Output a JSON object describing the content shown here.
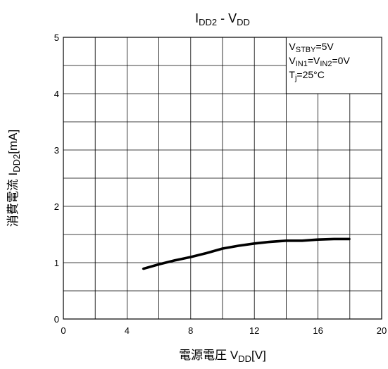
{
  "chart_data": {
    "type": "line",
    "title": {
      "main": "I",
      "main_sub": "DD2",
      "sep": " - V",
      "sep_sub": "DD"
    },
    "xlabel": {
      "prefix": "電源電圧 V",
      "sub": "DD",
      "suffix": "[V]"
    },
    "ylabel": {
      "prefix": "消費電流 I",
      "sub": "DD2",
      "suffix": "[mA]"
    },
    "xlim": [
      0,
      20
    ],
    "ylim": [
      0,
      5
    ],
    "x_major_ticks": [
      "0",
      "4",
      "8",
      "12",
      "16",
      "20"
    ],
    "y_major_ticks": [
      "0",
      "1",
      "2",
      "3",
      "4",
      "5"
    ],
    "x_grid_step": 2,
    "y_grid_step": 0.5,
    "grid": true,
    "legend": "none",
    "annotation": {
      "lines": [
        {
          "base": "V",
          "sub": "STBY",
          "rest": "=5V"
        },
        {
          "base": "V",
          "sub": "IN1",
          "rest": "=V",
          "sub2": "IN2",
          "rest2": "=0V"
        },
        {
          "base": "T",
          "sub": "j",
          "rest": "=25°C"
        }
      ]
    },
    "series": [
      {
        "color": "#000000",
        "x": [
          5,
          6,
          7,
          8,
          9,
          10,
          11,
          12,
          13,
          14,
          15,
          16,
          17,
          18
        ],
        "y": [
          0.89,
          0.97,
          1.04,
          1.1,
          1.17,
          1.25,
          1.3,
          1.34,
          1.37,
          1.39,
          1.39,
          1.41,
          1.42,
          1.42
        ]
      }
    ]
  }
}
